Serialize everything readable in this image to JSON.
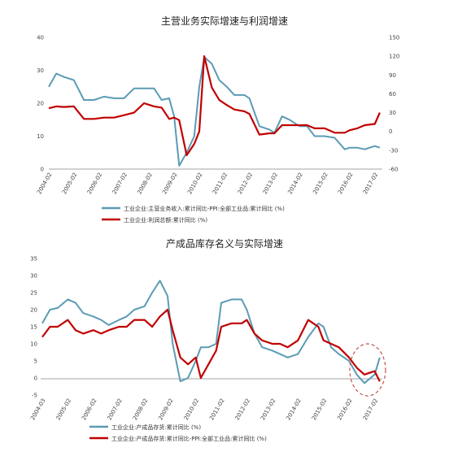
{
  "colors": {
    "line_blue": "#5b9bb5",
    "line_red": "#c00000",
    "axis": "#888888",
    "highlight": "#c0504d"
  },
  "chart_data": [
    {
      "type": "line",
      "title": "主营业务实际增速与利润增速",
      "x_tick_labels": [
        "2004-02",
        "2005-02",
        "2006-02",
        "2007-02",
        "2008-02",
        "2009-02",
        "2010-02",
        "2011-02",
        "2012-02",
        "2013-02",
        "2014-02",
        "2015-02",
        "2016-02",
        "2017-02"
      ],
      "y_left": {
        "ticks": [
          0,
          10,
          20,
          30,
          40
        ],
        "range": [
          0,
          40
        ]
      },
      "y_right": {
        "ticks": [
          -60,
          -30,
          0,
          30,
          60,
          90,
          120,
          150
        ],
        "range": [
          -60,
          150
        ]
      },
      "series": [
        {
          "name": "工业企业:主营业务收入:累计同比-PPI:全部工业品:累计同比 (%)",
          "axis": "left",
          "x": [
            2004.0,
            2004.3,
            2004.6,
            2005.0,
            2005.4,
            2005.8,
            2006.2,
            2006.6,
            2007.0,
            2007.4,
            2007.8,
            2008.2,
            2008.5,
            2008.8,
            2009.0,
            2009.2,
            2009.5,
            2009.8,
            2010.0,
            2010.2,
            2010.5,
            2010.8,
            2011.1,
            2011.4,
            2011.8,
            2012.0,
            2012.4,
            2012.8,
            2013.0,
            2013.3,
            2013.6,
            2014.0,
            2014.3,
            2014.6,
            2015.0,
            2015.4,
            2015.8,
            2016.0,
            2016.3,
            2016.6,
            2017.0,
            2017.2
          ],
          "values": [
            25,
            29,
            28,
            27,
            21,
            21,
            22,
            21.5,
            21.5,
            24.5,
            24.5,
            24.5,
            21,
            21.5,
            16,
            1,
            5,
            10,
            25,
            34,
            32,
            27,
            25,
            22.5,
            22.5,
            21.5,
            13,
            12,
            11,
            16,
            15,
            13,
            13,
            10,
            10,
            9.5,
            6,
            6.5,
            6.5,
            6,
            7,
            6.5
          ]
        },
        {
          "name": "工业企业:利润总额:累计同比 (%)",
          "axis": "right",
          "x": [
            2004.0,
            2004.3,
            2004.6,
            2005.0,
            2005.4,
            2005.8,
            2006.2,
            2006.6,
            2007.0,
            2007.4,
            2007.8,
            2008.2,
            2008.5,
            2008.8,
            2009.0,
            2009.2,
            2009.5,
            2009.8,
            2010.0,
            2010.2,
            2010.5,
            2010.8,
            2011.1,
            2011.4,
            2011.8,
            2012.0,
            2012.4,
            2012.8,
            2013.0,
            2013.3,
            2013.6,
            2014.0,
            2014.3,
            2014.6,
            2015.0,
            2015.4,
            2015.8,
            2016.0,
            2016.3,
            2016.6,
            2017.0,
            2017.2
          ],
          "values": [
            37,
            40,
            39,
            40,
            20,
            20,
            22,
            22,
            26,
            30,
            45,
            40,
            38,
            20,
            22,
            18,
            -38,
            -20,
            0,
            120,
            70,
            50,
            42,
            35,
            32,
            28,
            -5,
            -3,
            -3,
            10,
            10,
            10,
            10,
            5,
            5,
            -2,
            -2,
            2,
            5,
            10,
            12,
            30
          ]
        }
      ]
    },
    {
      "type": "line",
      "title": "产成品库存名义与实际增速",
      "x_tick_labels": [
        "2004-03",
        "2005-02",
        "2006-02",
        "2007-02",
        "2008-02",
        "2009-02",
        "2010-02",
        "2011-02",
        "2012-02",
        "2013-02",
        "2014-02",
        "2015-02",
        "2016-02",
        "2017-02"
      ],
      "y_left": {
        "ticks": [
          -5,
          0,
          5,
          10,
          15,
          20,
          25,
          30,
          35
        ],
        "range": [
          -5,
          35
        ]
      },
      "series": [
        {
          "name": "工业企业:产成品存货:累计同比 (%)",
          "axis": "left",
          "x": [
            2004.0,
            2004.3,
            2004.6,
            2005.0,
            2005.3,
            2005.6,
            2006.0,
            2006.3,
            2006.6,
            2007.0,
            2007.3,
            2007.6,
            2008.0,
            2008.3,
            2008.6,
            2008.9,
            2009.1,
            2009.4,
            2009.7,
            2010.0,
            2010.2,
            2010.5,
            2010.8,
            2011.0,
            2011.4,
            2011.8,
            2012.0,
            2012.3,
            2012.6,
            2013.0,
            2013.3,
            2013.6,
            2014.0,
            2014.4,
            2014.8,
            2015.0,
            2015.3,
            2015.6,
            2016.0,
            2016.3,
            2016.6,
            2017.0,
            2017.2
          ],
          "values": [
            16,
            20,
            20.5,
            23,
            22,
            19,
            18,
            17,
            15.5,
            17,
            18,
            20,
            21,
            25,
            28.5,
            24,
            10,
            -1,
            0,
            5,
            9,
            9,
            10,
            22,
            23,
            23,
            20,
            13,
            9,
            8,
            7,
            6,
            7,
            12,
            16,
            15,
            9,
            7,
            5,
            1,
            -1.5,
            1,
            6
          ]
        },
        {
          "name": "工业企业:产成品存货:累计同比-PPI:全部工业品:累计同比 (%)",
          "axis": "left",
          "x": [
            2004.0,
            2004.3,
            2004.6,
            2005.0,
            2005.3,
            2005.6,
            2006.0,
            2006.3,
            2006.6,
            2007.0,
            2007.3,
            2007.6,
            2008.0,
            2008.3,
            2008.6,
            2008.9,
            2009.1,
            2009.4,
            2009.7,
            2010.0,
            2010.2,
            2010.5,
            2010.8,
            2011.0,
            2011.4,
            2011.8,
            2012.0,
            2012.3,
            2012.6,
            2013.0,
            2013.3,
            2013.6,
            2014.0,
            2014.4,
            2014.8,
            2015.0,
            2015.3,
            2015.6,
            2016.0,
            2016.3,
            2016.6,
            2017.0,
            2017.2
          ],
          "values": [
            12,
            15,
            15,
            17,
            14,
            13,
            14,
            13,
            14,
            15,
            15,
            17,
            17,
            15,
            18,
            20,
            14,
            6,
            4,
            6,
            0,
            4,
            8,
            15,
            16,
            16,
            17,
            13,
            11,
            10,
            10,
            9,
            11,
            17,
            15,
            11,
            10,
            9,
            6,
            3,
            1,
            2,
            -1
          ]
        }
      ]
    }
  ]
}
